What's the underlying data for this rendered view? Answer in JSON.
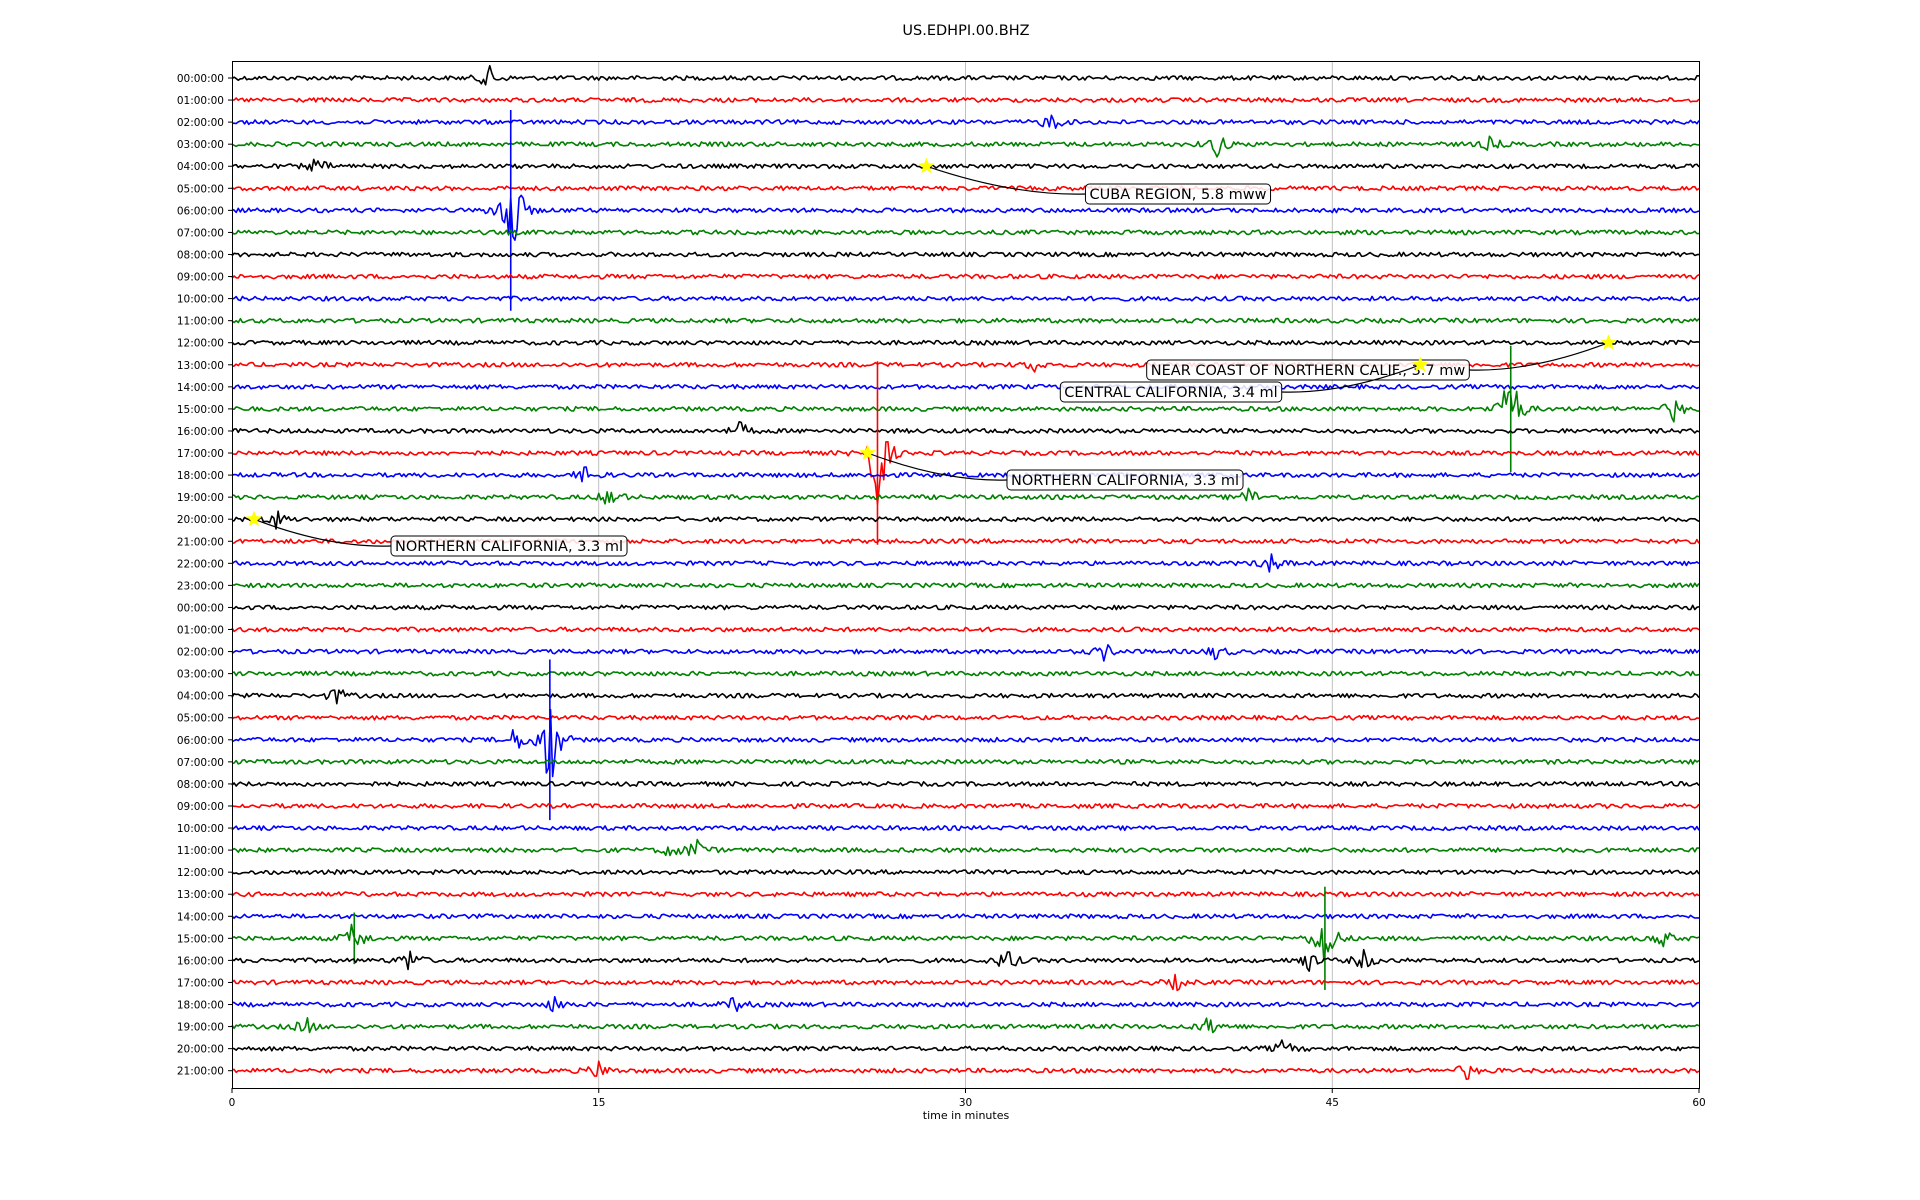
{
  "chart_data": {
    "type": "line",
    "title": "US.EDHPI.00.BHZ",
    "xlabel": "time in minutes",
    "ylabel": "",
    "xlim": [
      0,
      60
    ],
    "xticks": [
      "0",
      "15",
      "30",
      "45",
      "60"
    ],
    "grid": "vertical",
    "color_cycle": [
      "#000000",
      "#ff0000",
      "#0000ff",
      "#008000"
    ],
    "rows": [
      "00:00:00",
      "01:00:00",
      "02:00:00",
      "03:00:00",
      "04:00:00",
      "05:00:00",
      "06:00:00",
      "07:00:00",
      "08:00:00",
      "09:00:00",
      "10:00:00",
      "11:00:00",
      "12:00:00",
      "13:00:00",
      "14:00:00",
      "15:00:00",
      "16:00:00",
      "17:00:00",
      "18:00:00",
      "19:00:00",
      "20:00:00",
      "21:00:00",
      "22:00:00",
      "23:00:00",
      "00:00:00",
      "01:00:00",
      "02:00:00",
      "03:00:00",
      "04:00:00",
      "05:00:00",
      "06:00:00",
      "07:00:00",
      "08:00:00",
      "09:00:00",
      "10:00:00",
      "11:00:00",
      "12:00:00",
      "13:00:00",
      "14:00:00",
      "15:00:00",
      "16:00:00",
      "17:00:00",
      "18:00:00",
      "19:00:00",
      "20:00:00",
      "21:00:00"
    ],
    "events": [
      {
        "row": 4,
        "minute": 28.4,
        "label": "CUBA REGION, 5.8 mww"
      },
      {
        "row": 12,
        "minute": 56.3,
        "label": "NEAR COAST OF NORTHERN CALIF., 3.7 mw"
      },
      {
        "row": 13,
        "minute": 48.6,
        "label": "CENTRAL CALIFORNIA, 3.4 ml"
      },
      {
        "row": 17,
        "minute": 26.0,
        "label": "NORTHERN CALIFORNIA, 3.3 ml"
      },
      {
        "row": 20,
        "minute": 0.9,
        "label": "NORTHERN CALIFORNIA, 3.3 ml"
      }
    ],
    "bursts": [
      {
        "row": 0,
        "minute": 10.5,
        "amp": 0.55
      },
      {
        "row": 2,
        "minute": 33.5,
        "amp": 0.45
      },
      {
        "row": 3,
        "minute": 40.3,
        "amp": 0.6
      },
      {
        "row": 3,
        "minute": 51.5,
        "amp": 0.35
      },
      {
        "row": 4,
        "minute": 3.5,
        "amp": 0.4
      },
      {
        "row": 6,
        "minute": 11.4,
        "amp": 3.5
      },
      {
        "row": 13,
        "minute": 32.8,
        "amp": 0.3
      },
      {
        "row": 15,
        "minute": 52.3,
        "amp": 2.2
      },
      {
        "row": 15,
        "minute": 59.0,
        "amp": 0.6
      },
      {
        "row": 16,
        "minute": 20.8,
        "amp": 0.4
      },
      {
        "row": 17,
        "minute": 26.4,
        "amp": 3.2
      },
      {
        "row": 18,
        "minute": 14.5,
        "amp": 0.45
      },
      {
        "row": 19,
        "minute": 15.5,
        "amp": 0.55
      },
      {
        "row": 19,
        "minute": 41.6,
        "amp": 0.45
      },
      {
        "row": 20,
        "minute": 1.8,
        "amp": 0.4
      },
      {
        "row": 22,
        "minute": 42.5,
        "amp": 0.5
      },
      {
        "row": 26,
        "minute": 35.7,
        "amp": 0.4
      },
      {
        "row": 26,
        "minute": 40.3,
        "amp": 0.4
      },
      {
        "row": 28,
        "minute": 4.3,
        "amp": 0.4
      },
      {
        "row": 30,
        "minute": 13.0,
        "amp": 2.8
      },
      {
        "row": 30,
        "minute": 11.6,
        "amp": 0.6
      },
      {
        "row": 35,
        "minute": 19.0,
        "amp": 0.55
      },
      {
        "row": 35,
        "minute": 18.0,
        "amp": 0.4
      },
      {
        "row": 39,
        "minute": 5.0,
        "amp": 0.9
      },
      {
        "row": 39,
        "minute": 44.7,
        "amp": 1.8
      },
      {
        "row": 39,
        "minute": 58.5,
        "amp": 0.5
      },
      {
        "row": 40,
        "minute": 7.3,
        "amp": 0.6
      },
      {
        "row": 40,
        "minute": 31.7,
        "amp": 0.6
      },
      {
        "row": 40,
        "minute": 44.0,
        "amp": 0.5
      },
      {
        "row": 40,
        "minute": 46.3,
        "amp": 0.5
      },
      {
        "row": 41,
        "minute": 38.6,
        "amp": 0.35
      },
      {
        "row": 42,
        "minute": 20.6,
        "amp": 0.4
      },
      {
        "row": 42,
        "minute": 13.2,
        "amp": 0.35
      },
      {
        "row": 43,
        "minute": 3.0,
        "amp": 0.45
      },
      {
        "row": 43,
        "minute": 40.0,
        "amp": 0.5
      },
      {
        "row": 44,
        "minute": 43.0,
        "amp": 0.4
      },
      {
        "row": 45,
        "minute": 15.0,
        "amp": 0.45
      },
      {
        "row": 45,
        "minute": 50.5,
        "amp": 0.4
      }
    ]
  }
}
